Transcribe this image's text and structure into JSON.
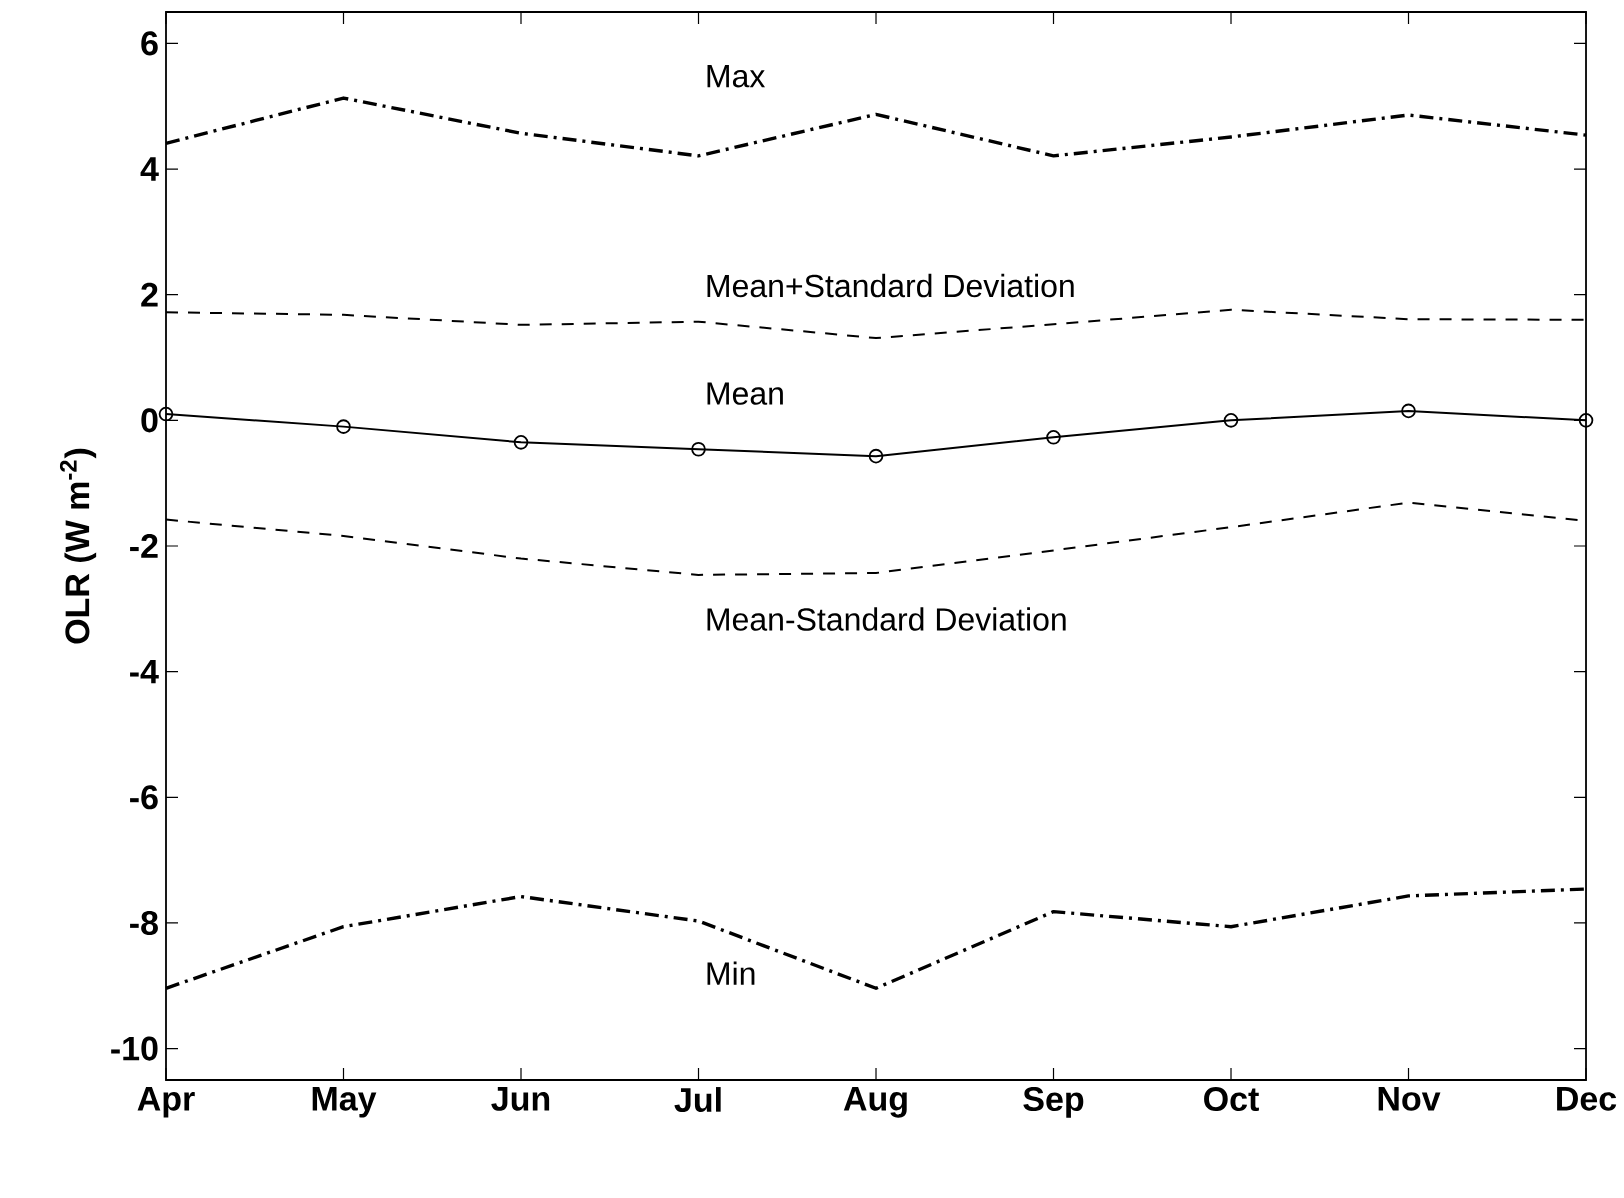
{
  "chart_data": {
    "type": "line",
    "ylabel": "OLR (W m$^{-2}$)",
    "categories": [
      "Apr",
      "May",
      "Jun",
      "Jul",
      "Aug",
      "Sep",
      "Oct",
      "Nov",
      "Dec"
    ],
    "series": [
      {
        "name": "Max",
        "color": "#000000",
        "line_style": "dashdot",
        "values": [
          4.41,
          5.13,
          4.57,
          4.21,
          4.87,
          4.21,
          4.51,
          4.86,
          4.54
        ]
      },
      {
        "name": "Mean+Standard Deviation",
        "color": "#000000",
        "line_style": "dashed",
        "values": [
          1.72,
          1.68,
          1.52,
          1.57,
          1.31,
          1.53,
          1.76,
          1.61,
          1.6
        ]
      },
      {
        "name": "Mean",
        "color": "#000000",
        "line_style": "solid",
        "marker": "circle",
        "values": [
          0.1,
          -0.1,
          -0.35,
          -0.46,
          -0.57,
          -0.27,
          0.0,
          0.15,
          0.0
        ]
      },
      {
        "name": "Mean-Standard Deviation",
        "color": "#000000",
        "line_style": "dashed",
        "values": [
          -1.58,
          -1.84,
          -2.2,
          -2.46,
          -2.43,
          -2.07,
          -1.7,
          -1.31,
          -1.6
        ]
      },
      {
        "name": "Min",
        "color": "#000000",
        "line_style": "dashdot",
        "values": [
          -9.04,
          -8.06,
          -7.58,
          -7.97,
          -9.04,
          -7.82,
          -8.06,
          -7.57,
          -7.46
        ]
      }
    ],
    "ylim": [
      -10.5,
      6.5
    ],
    "yticks": [
      -10,
      -8,
      -6,
      -4,
      -2,
      0,
      2,
      4,
      6
    ],
    "grid": false
  }
}
